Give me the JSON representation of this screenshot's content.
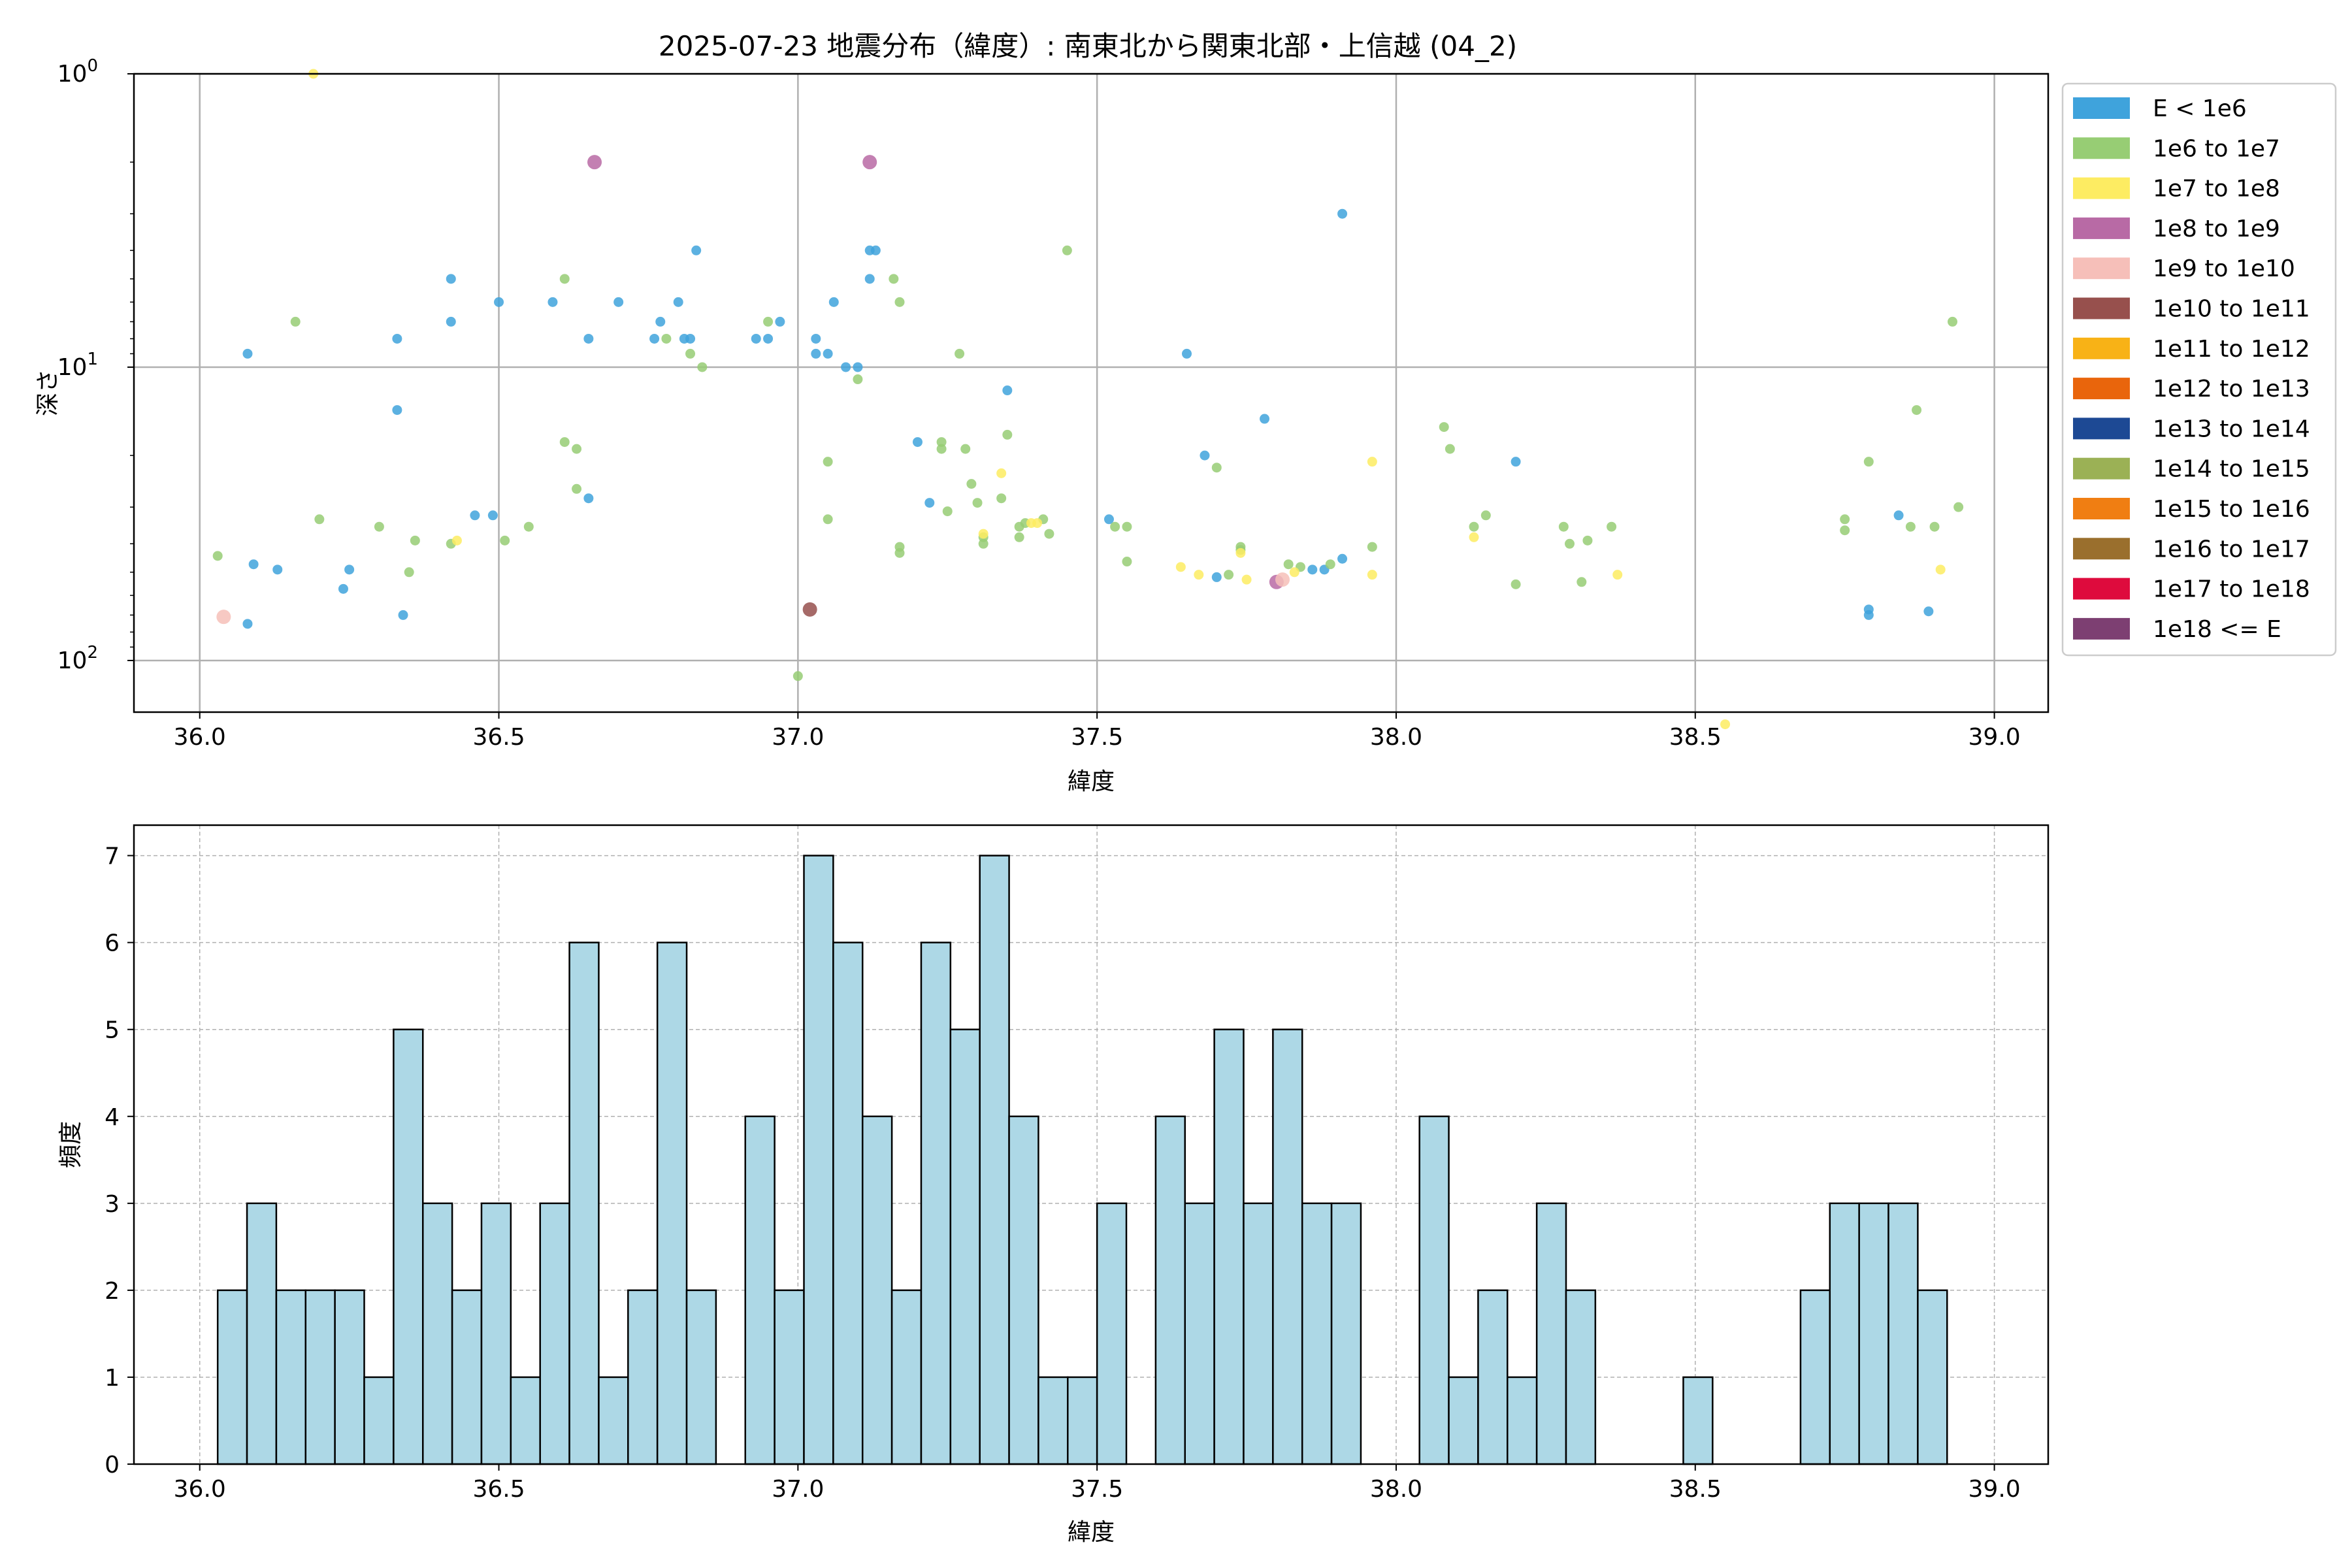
{
  "figure": {
    "title": "2025-07-23 地震分布（緯度）: 南東北から関東北部・上信越 (04_2)"
  },
  "chart_data": [
    {
      "type": "scatter",
      "title": "2025-07-23 地震分布（緯度）: 南東北から関東北部・上信越 (04_2)",
      "xlabel": "緯度",
      "ylabel": "深さ",
      "xlim": [
        35.89,
        39.09
      ],
      "ylim": [
        1.0,
        150
      ],
      "y_scale": "log",
      "y_inverted": true,
      "x_ticks": [
        "36.0",
        "36.5",
        "37.0",
        "37.5",
        "38.0",
        "38.5",
        "39.0"
      ],
      "y_ticks": [
        {
          "value": 1,
          "base": "10",
          "exp": "0"
        },
        {
          "value": 10,
          "base": "10",
          "exp": "1"
        },
        {
          "value": 100,
          "base": "10",
          "exp": "2"
        }
      ],
      "grid": true,
      "legend_position": "outside right",
      "legend": [
        {
          "label": "E < 1e6",
          "color": "#3fa3dc"
        },
        {
          "label": "1e6 to 1e7",
          "color": "#97cd74"
        },
        {
          "label": "1e7 to 1e8",
          "color": "#fdec62"
        },
        {
          "label": "1e8 to 1e9",
          "color": "#b86aa5"
        },
        {
          "label": "1e9 to 1e10",
          "color": "#f6bfb9"
        },
        {
          "label": "1e10 to 1e11",
          "color": "#97504d"
        },
        {
          "label": "1e11 to 1e12",
          "color": "#f8b216"
        },
        {
          "label": "1e12 to 1e13",
          "color": "#e9650c"
        },
        {
          "label": "1e13 to 1e14",
          "color": "#1d4994"
        },
        {
          "label": "1e14 to 1e15",
          "color": "#9bb155"
        },
        {
          "label": "1e15 to 1e16",
          "color": "#f07e12"
        },
        {
          "label": "1e16 to 1e17",
          "color": "#9a6f2d"
        },
        {
          "label": "1e17 to 1e18",
          "color": "#de0b3d"
        },
        {
          "label": "1e18 <= E",
          "color": "#7d3f72"
        }
      ],
      "points": [
        {
          "x": 36.08,
          "y": 9.0,
          "c": 0
        },
        {
          "x": 36.09,
          "y": 47,
          "c": 0
        },
        {
          "x": 36.08,
          "y": 75,
          "c": 0
        },
        {
          "x": 36.13,
          "y": 49,
          "c": 0
        },
        {
          "x": 36.24,
          "y": 57,
          "c": 0
        },
        {
          "x": 36.25,
          "y": 49,
          "c": 0
        },
        {
          "x": 36.33,
          "y": 8.0,
          "c": 0
        },
        {
          "x": 36.33,
          "y": 14,
          "c": 0
        },
        {
          "x": 36.34,
          "y": 70,
          "c": 0
        },
        {
          "x": 36.42,
          "y": 5.0,
          "c": 0
        },
        {
          "x": 36.42,
          "y": 7.0,
          "c": 0
        },
        {
          "x": 36.46,
          "y": 32,
          "c": 0
        },
        {
          "x": 36.49,
          "y": 32,
          "c": 0
        },
        {
          "x": 36.5,
          "y": 6.0,
          "c": 0
        },
        {
          "x": 36.59,
          "y": 6.0,
          "c": 0
        },
        {
          "x": 36.65,
          "y": 8.0,
          "c": 0
        },
        {
          "x": 36.65,
          "y": 28,
          "c": 0
        },
        {
          "x": 36.7,
          "y": 6.0,
          "c": 0
        },
        {
          "x": 36.76,
          "y": 8.0,
          "c": 0
        },
        {
          "x": 36.77,
          "y": 7.0,
          "c": 0
        },
        {
          "x": 36.8,
          "y": 6.0,
          "c": 0
        },
        {
          "x": 36.81,
          "y": 8.0,
          "c": 0
        },
        {
          "x": 36.82,
          "y": 8.0,
          "c": 0
        },
        {
          "x": 36.83,
          "y": 4.0,
          "c": 0
        },
        {
          "x": 36.93,
          "y": 8.0,
          "c": 0
        },
        {
          "x": 36.95,
          "y": 8.0,
          "c": 0
        },
        {
          "x": 36.97,
          "y": 7.0,
          "c": 0
        },
        {
          "x": 37.03,
          "y": 8.0,
          "c": 0
        },
        {
          "x": 37.03,
          "y": 9.0,
          "c": 0
        },
        {
          "x": 37.05,
          "y": 9.0,
          "c": 0
        },
        {
          "x": 37.06,
          "y": 6.0,
          "c": 0
        },
        {
          "x": 37.08,
          "y": 10,
          "c": 0
        },
        {
          "x": 37.1,
          "y": 10,
          "c": 0
        },
        {
          "x": 37.12,
          "y": 4.0,
          "c": 0
        },
        {
          "x": 37.12,
          "y": 5.0,
          "c": 0
        },
        {
          "x": 37.13,
          "y": 4.0,
          "c": 0
        },
        {
          "x": 37.2,
          "y": 18,
          "c": 0
        },
        {
          "x": 37.22,
          "y": 29,
          "c": 0
        },
        {
          "x": 37.35,
          "y": 12,
          "c": 0
        },
        {
          "x": 37.52,
          "y": 33,
          "c": 0
        },
        {
          "x": 37.65,
          "y": 9.0,
          "c": 0
        },
        {
          "x": 37.68,
          "y": 20,
          "c": 0
        },
        {
          "x": 37.7,
          "y": 52,
          "c": 0
        },
        {
          "x": 37.78,
          "y": 15,
          "c": 0
        },
        {
          "x": 37.86,
          "y": 49,
          "c": 0
        },
        {
          "x": 37.88,
          "y": 49,
          "c": 0
        },
        {
          "x": 37.91,
          "y": 3.0,
          "c": 0
        },
        {
          "x": 37.91,
          "y": 45,
          "c": 0
        },
        {
          "x": 38.2,
          "y": 21,
          "c": 0
        },
        {
          "x": 38.79,
          "y": 67,
          "c": 0
        },
        {
          "x": 38.79,
          "y": 70,
          "c": 0
        },
        {
          "x": 38.84,
          "y": 32,
          "c": 0
        },
        {
          "x": 38.89,
          "y": 68,
          "c": 0
        },
        {
          "x": 36.03,
          "y": 44,
          "c": 1
        },
        {
          "x": 36.16,
          "y": 7.0,
          "c": 1
        },
        {
          "x": 36.2,
          "y": 33,
          "c": 1
        },
        {
          "x": 36.3,
          "y": 35,
          "c": 1
        },
        {
          "x": 36.35,
          "y": 50,
          "c": 1
        },
        {
          "x": 36.36,
          "y": 39,
          "c": 1
        },
        {
          "x": 36.42,
          "y": 40,
          "c": 1
        },
        {
          "x": 36.51,
          "y": 39,
          "c": 1
        },
        {
          "x": 36.55,
          "y": 35,
          "c": 1
        },
        {
          "x": 36.61,
          "y": 18,
          "c": 1
        },
        {
          "x": 36.61,
          "y": 5.0,
          "c": 1
        },
        {
          "x": 36.63,
          "y": 19,
          "c": 1
        },
        {
          "x": 36.63,
          "y": 26,
          "c": 1
        },
        {
          "x": 36.78,
          "y": 8.0,
          "c": 1
        },
        {
          "x": 36.82,
          "y": 9.0,
          "c": 1
        },
        {
          "x": 36.84,
          "y": 10,
          "c": 1
        },
        {
          "x": 36.95,
          "y": 7.0,
          "c": 1
        },
        {
          "x": 37.0,
          "y": 113,
          "c": 1
        },
        {
          "x": 37.05,
          "y": 33,
          "c": 1
        },
        {
          "x": 37.05,
          "y": 21,
          "c": 1
        },
        {
          "x": 37.1,
          "y": 11,
          "c": 1
        },
        {
          "x": 37.16,
          "y": 5.0,
          "c": 1
        },
        {
          "x": 37.17,
          "y": 6.0,
          "c": 1
        },
        {
          "x": 37.17,
          "y": 41,
          "c": 1
        },
        {
          "x": 37.17,
          "y": 43,
          "c": 1
        },
        {
          "x": 37.24,
          "y": 18,
          "c": 1
        },
        {
          "x": 37.24,
          "y": 19,
          "c": 1
        },
        {
          "x": 37.25,
          "y": 31,
          "c": 1
        },
        {
          "x": 37.27,
          "y": 9.0,
          "c": 1
        },
        {
          "x": 37.28,
          "y": 19,
          "c": 1
        },
        {
          "x": 37.29,
          "y": 25,
          "c": 1
        },
        {
          "x": 37.3,
          "y": 29,
          "c": 1
        },
        {
          "x": 37.31,
          "y": 38,
          "c": 1
        },
        {
          "x": 37.31,
          "y": 40,
          "c": 1
        },
        {
          "x": 37.34,
          "y": 28,
          "c": 1
        },
        {
          "x": 37.35,
          "y": 17,
          "c": 1
        },
        {
          "x": 37.37,
          "y": 38,
          "c": 1
        },
        {
          "x": 37.37,
          "y": 35,
          "c": 1
        },
        {
          "x": 37.38,
          "y": 34,
          "c": 1
        },
        {
          "x": 37.41,
          "y": 33,
          "c": 1
        },
        {
          "x": 37.42,
          "y": 37,
          "c": 1
        },
        {
          "x": 37.45,
          "y": 4.0,
          "c": 1
        },
        {
          "x": 37.53,
          "y": 35,
          "c": 1
        },
        {
          "x": 37.55,
          "y": 35,
          "c": 1
        },
        {
          "x": 37.55,
          "y": 46,
          "c": 1
        },
        {
          "x": 37.7,
          "y": 22,
          "c": 1
        },
        {
          "x": 37.72,
          "y": 51,
          "c": 1
        },
        {
          "x": 37.74,
          "y": 41,
          "c": 1
        },
        {
          "x": 37.74,
          "y": 42,
          "c": 1
        },
        {
          "x": 37.82,
          "y": 47,
          "c": 1
        },
        {
          "x": 37.84,
          "y": 48,
          "c": 1
        },
        {
          "x": 37.89,
          "y": 47,
          "c": 1
        },
        {
          "x": 37.96,
          "y": 41,
          "c": 1
        },
        {
          "x": 38.08,
          "y": 16,
          "c": 1
        },
        {
          "x": 38.09,
          "y": 19,
          "c": 1
        },
        {
          "x": 38.13,
          "y": 35,
          "c": 1
        },
        {
          "x": 38.15,
          "y": 32,
          "c": 1
        },
        {
          "x": 38.2,
          "y": 55,
          "c": 1
        },
        {
          "x": 38.28,
          "y": 35,
          "c": 1
        },
        {
          "x": 38.29,
          "y": 40,
          "c": 1
        },
        {
          "x": 38.31,
          "y": 54,
          "c": 1
        },
        {
          "x": 38.32,
          "y": 39,
          "c": 1
        },
        {
          "x": 38.36,
          "y": 35,
          "c": 1
        },
        {
          "x": 38.75,
          "y": 33,
          "c": 1
        },
        {
          "x": 38.75,
          "y": 36,
          "c": 1
        },
        {
          "x": 38.79,
          "y": 21,
          "c": 1
        },
        {
          "x": 38.86,
          "y": 35,
          "c": 1
        },
        {
          "x": 38.87,
          "y": 14,
          "c": 1
        },
        {
          "x": 38.9,
          "y": 35,
          "c": 1
        },
        {
          "x": 38.93,
          "y": 7.0,
          "c": 1
        },
        {
          "x": 38.94,
          "y": 30,
          "c": 1
        },
        {
          "x": 36.19,
          "y": 1.0,
          "c": 2
        },
        {
          "x": 36.43,
          "y": 39,
          "c": 2
        },
        {
          "x": 37.31,
          "y": 37,
          "c": 2
        },
        {
          "x": 37.34,
          "y": 23,
          "c": 2
        },
        {
          "x": 37.39,
          "y": 34,
          "c": 2
        },
        {
          "x": 37.4,
          "y": 34,
          "c": 2
        },
        {
          "x": 37.64,
          "y": 48,
          "c": 2
        },
        {
          "x": 37.67,
          "y": 51,
          "c": 2
        },
        {
          "x": 37.74,
          "y": 43,
          "c": 2
        },
        {
          "x": 37.75,
          "y": 53,
          "c": 2
        },
        {
          "x": 37.83,
          "y": 50,
          "c": 2
        },
        {
          "x": 37.96,
          "y": 51,
          "c": 2
        },
        {
          "x": 37.96,
          "y": 21,
          "c": 2
        },
        {
          "x": 38.13,
          "y": 38,
          "c": 2
        },
        {
          "x": 38.37,
          "y": 51,
          "c": 2
        },
        {
          "x": 38.55,
          "y": 165,
          "c": 2
        },
        {
          "x": 38.91,
          "y": 49,
          "c": 2
        },
        {
          "x": 36.66,
          "y": 2.0,
          "c": 3
        },
        {
          "x": 37.12,
          "y": 2.0,
          "c": 3
        },
        {
          "x": 37.8,
          "y": 54,
          "c": 3
        },
        {
          "x": 36.04,
          "y": 71,
          "c": 4
        },
        {
          "x": 37.81,
          "y": 53,
          "c": 4
        },
        {
          "x": 37.02,
          "y": 67,
          "c": 5
        }
      ]
    },
    {
      "type": "bar",
      "title": "",
      "xlabel": "緯度",
      "ylabel": "頻度",
      "xlim": [
        35.89,
        39.09
      ],
      "ylim": [
        0,
        7.35
      ],
      "x_ticks": [
        "36.0",
        "36.5",
        "37.0",
        "37.5",
        "38.0",
        "38.5",
        "39.0"
      ],
      "y_ticks": [
        "0",
        "1",
        "2",
        "3",
        "4",
        "5",
        "6",
        "7"
      ],
      "grid": true,
      "bar_color": "#add8e6",
      "bin_start": 36.03,
      "bin_width": 0.049,
      "values": [
        2,
        3,
        2,
        2,
        2,
        1,
        5,
        3,
        2,
        3,
        1,
        3,
        6,
        1,
        2,
        6,
        2,
        0,
        4,
        2,
        7,
        6,
        4,
        2,
        6,
        5,
        7,
        4,
        1,
        1,
        3,
        0,
        4,
        3,
        5,
        3,
        5,
        3,
        3,
        0,
        0,
        4,
        1,
        2,
        1,
        3,
        2,
        0,
        0,
        0,
        1,
        0,
        0,
        0,
        2,
        3,
        3,
        3,
        2
      ]
    }
  ]
}
